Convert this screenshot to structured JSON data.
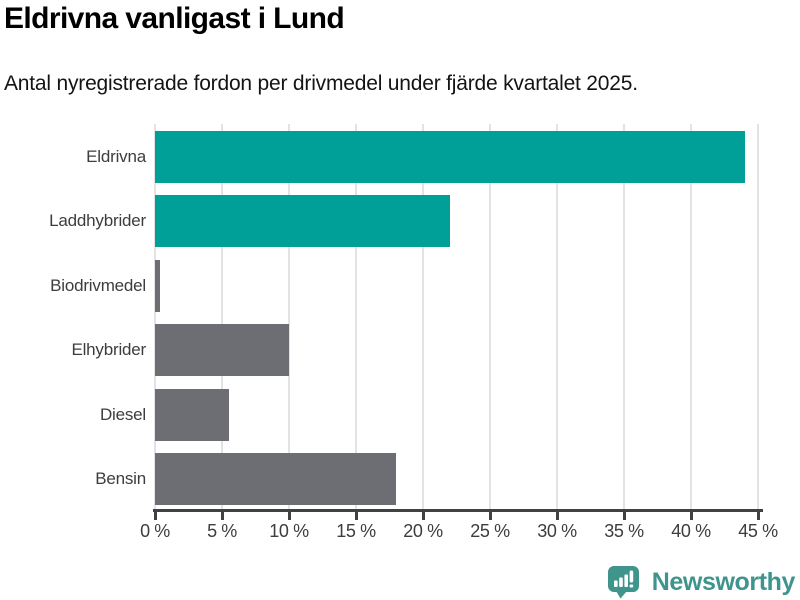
{
  "header": {
    "title": "Eldrivna vanligast i Lund",
    "subtitle": "Antal nyregistrerade fordon per drivmedel under fjärde kvartalet 2025."
  },
  "chart_data": {
    "type": "bar",
    "orientation": "horizontal",
    "title": "Eldrivna vanligast i Lund",
    "subtitle": "Antal nyregistrerade fordon per drivmedel under fjärde kvartalet 2025.",
    "categories": [
      "Eldrivna",
      "Laddhybrider",
      "Biodrivmedel",
      "Elhybrider",
      "Diesel",
      "Bensin"
    ],
    "values": [
      44,
      22,
      0.4,
      10,
      5.5,
      18
    ],
    "unit": "%",
    "bar_colors": [
      "#00a099",
      "#00a099",
      "#6d6e73",
      "#6d6e73",
      "#6d6e73",
      "#6d6e73"
    ],
    "xlim": [
      0,
      45
    ],
    "x_ticks": [
      0,
      5,
      10,
      15,
      20,
      25,
      30,
      35,
      40,
      45
    ],
    "x_tick_labels": [
      "0 %",
      "5 %",
      "10 %",
      "15 %",
      "20 %",
      "25 %",
      "30 %",
      "35 %",
      "40 %",
      "45 %"
    ],
    "grid": "vertical",
    "legend": "none"
  },
  "footer": {
    "brand": "Newsworthy",
    "logo_icon": "bar-chart-speech-bubble-icon"
  },
  "colors": {
    "accent_teal": "#00a099",
    "neutral_gray": "#6d6e73",
    "gridline": "#e3e3e3",
    "axis": "#414141",
    "text": "#3d3d3d",
    "brand_teal": "#3f948c"
  }
}
